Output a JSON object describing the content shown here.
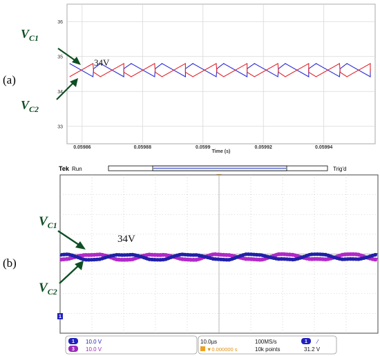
{
  "panel_labels": {
    "a": "(a)",
    "b": "(b)"
  },
  "colors": {
    "vc1_sim": "#2b2bd6",
    "vc2_sim": "#e0242a",
    "vc1_scope": "#2020a8",
    "vc2_scope": "#b02ac8",
    "annotation": "#0e4f22",
    "scope_bg": "#ffffff",
    "scope_grid": "#9a9a9a"
  },
  "chart_data": [
    {
      "panel": "(a)",
      "type": "line",
      "title": "",
      "xlabel": "Time (s)",
      "ylabel": "",
      "xlim": [
        0.059855,
        0.059957
      ],
      "ylim": [
        32.5,
        36.5
      ],
      "x_ticks": [
        "0.05986",
        "0.05988",
        "0.0599",
        "0.05992",
        "0.05994"
      ],
      "y_ticks": [
        "33",
        "34",
        "35",
        "36"
      ],
      "grid": true,
      "period": 2.04e-05,
      "series": [
        {
          "name": "VC1",
          "color": "#2b2bd6",
          "phase": 1.6e-06,
          "points": [
            [
              0,
              34.65
            ],
            [
              0.12,
              34.8
            ],
            [
              0.5,
              34.42
            ],
            [
              0.51,
              34.65
            ],
            [
              0.62,
              34.8
            ],
            [
              1.0,
              34.42
            ]
          ]
        },
        {
          "name": "VC2",
          "color": "#e0242a",
          "phase": 1.6e-06,
          "points": [
            [
              0,
              34.55
            ],
            [
              0.12,
              34.42
            ],
            [
              0.5,
              34.8
            ],
            [
              0.51,
              34.55
            ],
            [
              0.62,
              34.42
            ],
            [
              1.0,
              34.8
            ]
          ]
        }
      ],
      "annotations": {
        "vc1_label": {
          "main": "V",
          "sub": "C1"
        },
        "vc2_label": {
          "main": "V",
          "sub": "C2"
        },
        "level": "34V"
      }
    },
    {
      "panel": "(b)",
      "type": "line",
      "xlim": [
        0,
        100
      ],
      "ylim": [
        -4,
        4
      ],
      "x_divisions": 10,
      "y_divisions": 8,
      "grid": true,
      "period": 20.3,
      "offset_div": -0.15,
      "amplitude_div": 0.12,
      "series": [
        {
          "name": "VC1",
          "channel": "1",
          "color": "#2020a8",
          "phase": 0,
          "values": [
            0.12,
            0.0,
            -0.12,
            0.0
          ]
        },
        {
          "name": "VC2",
          "channel": "3",
          "color": "#b02ac8",
          "phase": 0,
          "values": [
            -0.12,
            0.0,
            0.12,
            0.0
          ]
        }
      ],
      "annotations": {
        "vc1_label": {
          "main": "V",
          "sub": "C1"
        },
        "vc2_label": {
          "main": "V",
          "sub": "C2"
        },
        "level": "34V"
      },
      "header": {
        "brand": "Tek",
        "state": "Run",
        "trigger": "Trig'd",
        "trigger_marker": "T"
      },
      "ground_marker": "1",
      "status": {
        "ch1_label": "1",
        "ch1_scale": "10.0 V",
        "ch3_label": "3",
        "ch3_scale": "10.0 V",
        "timebase": "10.0µs",
        "sample_rate": "100MS/s",
        "trig_offset": "▼0.000000 s",
        "record_length": "10k points",
        "trig_ch": "1",
        "trig_slope": "⁄",
        "trig_level": "31.2 V"
      }
    }
  ]
}
